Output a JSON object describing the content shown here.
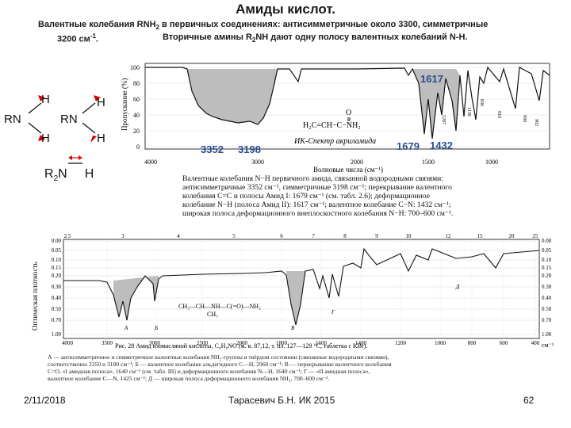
{
  "slide": {
    "title": "Амиды кислот.",
    "intro_line1_pre": "Валентные колебания RNH",
    "intro_line1_sub": "2",
    "intro_line1_post": " в первичных соединениях: антисимметричные около 3300, симметричные",
    "intro_line2_a": "3200 см",
    "intro_line2_sup": "-1",
    "intro_line2_b": ".",
    "intro_line2_c_pre": "Вторичные амины R",
    "intro_line2_c_sub": "2",
    "intro_line2_c_post": "NH дают одну полосу валентных колебаний N-H."
  },
  "structures": {
    "h_top_left": "H",
    "h_bottom_left": "H",
    "rn_left": "RN",
    "h_top_right": "H",
    "h_bottom_right": "H",
    "rn_right": "RN",
    "r2n_r": "R",
    "r2n_sub": "2",
    "r2n_n": "N",
    "r2n_h": "H"
  },
  "spectrum1": {
    "y_axis_label": "Пропускание (%)",
    "y_ticks": [
      "100",
      "80",
      "60",
      "40",
      "20",
      "0"
    ],
    "x_ticks": [
      "4000",
      "3000",
      "2000",
      "1500",
      "1000"
    ],
    "x_label": "Волновые числа (см⁻¹)",
    "peak_labels": [
      "1617",
      "3352",
      "3198",
      "1679",
      "1432"
    ],
    "caption": "ИК-Спектр акриламида",
    "marker_labels": [
      "818",
      "990",
      "962",
      "836",
      "1136",
      "1287"
    ]
  },
  "description": [
    "Валентные колебания N−H первичного амида, связанной водородными связями:",
    "антисимметричные 3352 см⁻¹, симметричные 3198 см⁻¹; перекрывание валентного",
    "колебания С=С и полосы Амид I: 1679 см⁻¹ (см. табл. 2.6); деформационное",
    "колебание N−H (полоса Амид II): 1617 см⁻¹; валентное колебание С−N: 1432 см⁻¹;",
    "широкая полоса деформационного внеплоскостного колебания N−H: 700–600 см⁻¹."
  ],
  "spectrum2": {
    "top_ticks": [
      "2.5",
      "3",
      "4",
      "5",
      "6",
      "7",
      "8",
      "9",
      "10",
      "12",
      "15",
      "20",
      "25"
    ],
    "left_values": [
      "0.00",
      "0.05",
      "0.10",
      "0.15",
      "0.20",
      "0.30",
      "0.40",
      "0.50",
      "0.70",
      "1.00"
    ],
    "right_values": [
      "0.00",
      "0.05",
      "0.10",
      "0.15",
      "0.20",
      "0.30",
      "0.40",
      "0.50",
      "0.70",
      "1.00"
    ],
    "y_axis_label": "Оптическая плотность",
    "bottom_ticks": [
      "4000",
      "3500",
      "3000",
      "2500",
      "2000",
      "1800",
      "1600",
      "1400",
      "1200",
      "1000",
      "800",
      "600",
      "400"
    ],
    "unit": "см⁻¹",
    "band_letters": [
      "А",
      "Б",
      "В",
      "Г",
      "Д"
    ],
    "formula_line": "CH₃—CH—NH—C(=O)—NH₂",
    "formula_branch": "CH₃",
    "caption": "Рис. 28  Амид изомасляной кислоты, C₄H₉NO (м. в. 87,12, т. пл. 127—129 °С, таблетка с KBr).",
    "legend_lines": [
      "А — антисимметричное и симметричное валентные колебания NH₂-группы в твёрдом состоянии (связанные водородными связями),",
      "соответственно 3350 и 3180 см⁻¹; Б — валентное колебание альдегидного С—Н, 2960 см⁻¹; В — перекрывание валентного колебания",
      "С=О, «I амидная полоса», 1640 см⁻¹ (см. табл. III) и деформационного колебания N—Н, 1640 см⁻¹; Г — «II амидная полоса»,",
      "валентное колебание С—N, 1425 см⁻¹; Д — широкая полоса деформационного колебания NH₂, 700–600 см⁻¹."
    ]
  },
  "footer": {
    "date": "2/11/2018",
    "author": "Тарасевич Б.Н.  ИК 2015",
    "page": "62"
  }
}
